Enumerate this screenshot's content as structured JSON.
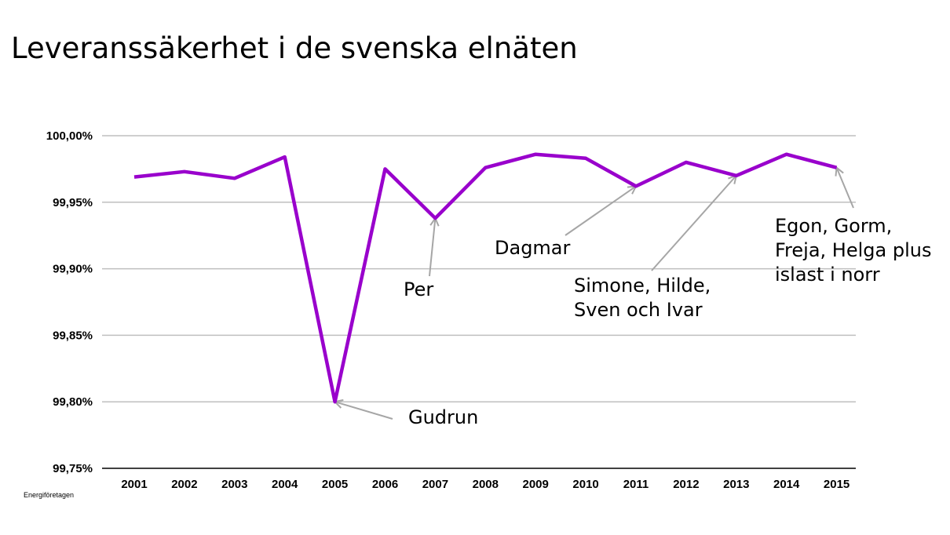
{
  "chart_data": {
    "type": "line",
    "title": "Leveranssäkerhet i de svenska elnäten",
    "xlabel": "",
    "ylabel": "",
    "categories": [
      "2001",
      "2002",
      "2003",
      "2004",
      "2005",
      "2006",
      "2007",
      "2008",
      "2009",
      "2010",
      "2011",
      "2012",
      "2013",
      "2014",
      "2015"
    ],
    "values": [
      99.969,
      99.973,
      99.968,
      99.984,
      99.8,
      99.975,
      99.938,
      99.976,
      99.986,
      99.983,
      99.962,
      99.98,
      99.97,
      99.986,
      99.976
    ],
    "ylim": [
      99.75,
      100.0
    ],
    "yticks": [
      "99,75%",
      "99,80%",
      "99,85%",
      "99,90%",
      "99,95%",
      "100,00%"
    ],
    "ytick_values": [
      99.75,
      99.8,
      99.85,
      99.9,
      99.95,
      100.0
    ],
    "grid": true,
    "line_color": "#9900cc",
    "annotations": [
      {
        "year": "2005",
        "lines": [
          "Gudrun"
        ]
      },
      {
        "year": "2007",
        "lines": [
          "Per"
        ]
      },
      {
        "year": "2011",
        "lines": [
          "Dagmar"
        ]
      },
      {
        "year": "2013",
        "lines": [
          "Simone, Hilde,",
          "Sven och Ivar"
        ]
      },
      {
        "year": "2015",
        "lines": [
          "Egon, Gorm,",
          "Freja, Helga plus",
          "islast i norr"
        ]
      }
    ],
    "source": "Energiföretagen"
  }
}
